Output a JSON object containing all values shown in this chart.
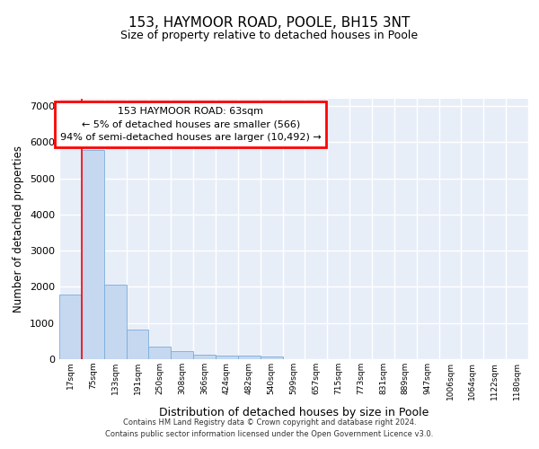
{
  "title": "153, HAYMOOR ROAD, POOLE, BH15 3NT",
  "subtitle": "Size of property relative to detached houses in Poole",
  "xlabel": "Distribution of detached houses by size in Poole",
  "ylabel": "Number of detached properties",
  "bar_color": "#c5d8f0",
  "bar_edge_color": "#7aacda",
  "bin_labels": [
    "17sqm",
    "75sqm",
    "133sqm",
    "191sqm",
    "250sqm",
    "308sqm",
    "366sqm",
    "424sqm",
    "482sqm",
    "540sqm",
    "599sqm",
    "657sqm",
    "715sqm",
    "773sqm",
    "831sqm",
    "889sqm",
    "947sqm",
    "1006sqm",
    "1064sqm",
    "1122sqm",
    "1180sqm"
  ],
  "bar_heights": [
    1780,
    5780,
    2060,
    820,
    340,
    215,
    120,
    105,
    95,
    80,
    0,
    0,
    0,
    0,
    0,
    0,
    0,
    0,
    0,
    0,
    0
  ],
  "annotation_text_line1": "153 HAYMOOR ROAD: 63sqm",
  "annotation_text_line2": "← 5% of detached houses are smaller (566)",
  "annotation_text_line3": "94% of semi-detached houses are larger (10,492) →",
  "ylim": [
    0,
    7200
  ],
  "yticks": [
    0,
    1000,
    2000,
    3000,
    4000,
    5000,
    6000,
    7000
  ],
  "background_color": "#e8eef8",
  "grid_color": "#ffffff",
  "footer_line1": "Contains HM Land Registry data © Crown copyright and database right 2024.",
  "footer_line2": "Contains public sector information licensed under the Open Government Licence v3.0."
}
